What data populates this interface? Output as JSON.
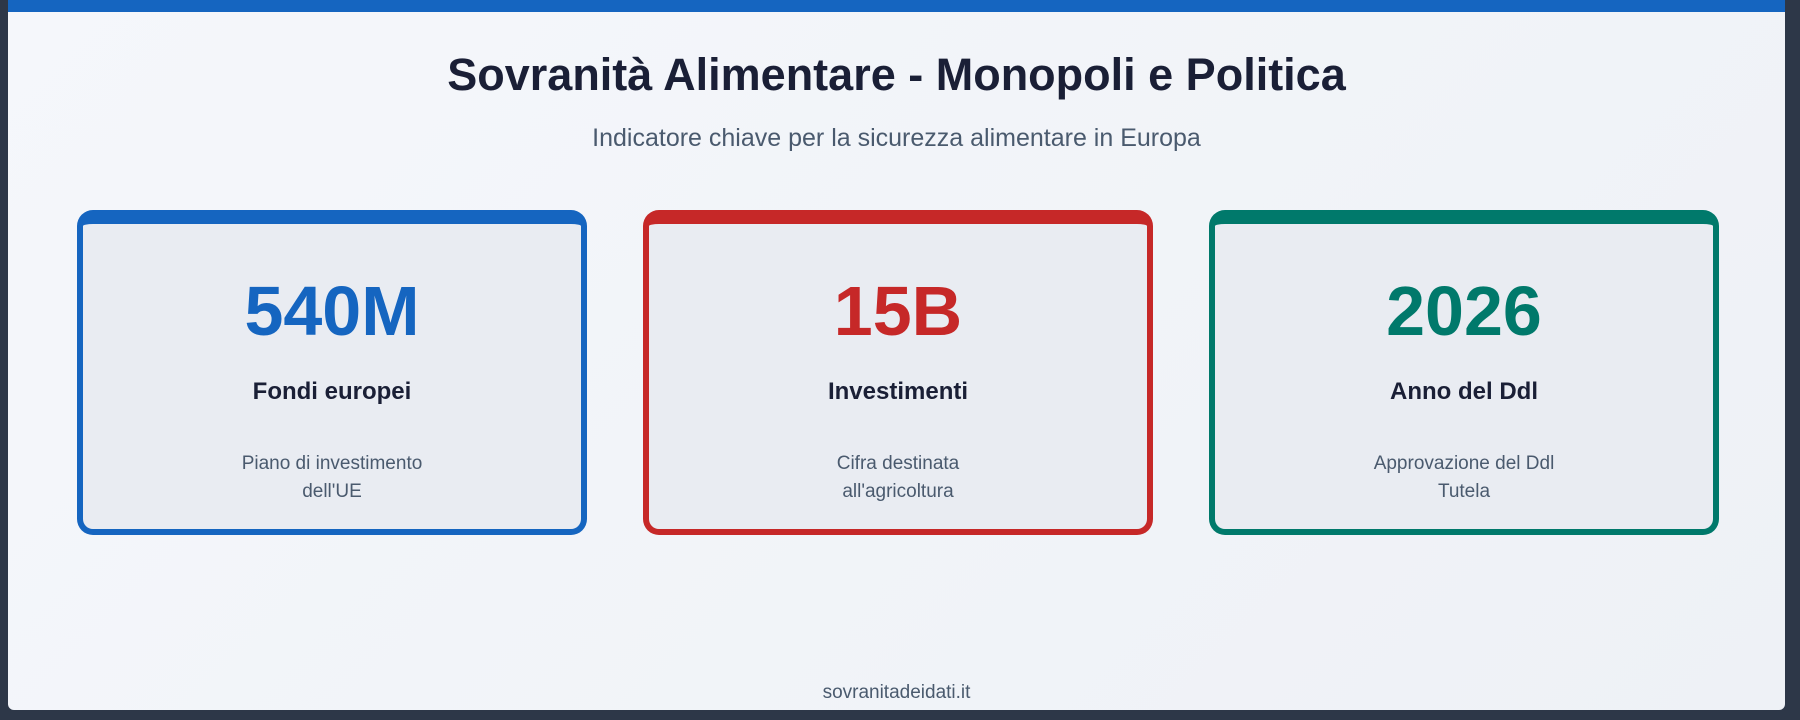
{
  "header": {
    "title": "Sovranità Alimentare - Monopoli e Politica",
    "subtitle": "Indicatore chiave per la sicurezza alimentare in Europa"
  },
  "colors": {
    "top_bar": "#1565c0",
    "card_blue": "#1565c0",
    "card_red": "#c62828",
    "card_green": "#00796b"
  },
  "cards": [
    {
      "value": "540M",
      "label": "Fondi europei",
      "description": "Piano di investimento dell'UE"
    },
    {
      "value": "15B",
      "label": "Investimenti",
      "description": "Cifra destinata all'agricoltura"
    },
    {
      "value": "2026",
      "label": "Anno del Ddl",
      "description": "Approvazione del Ddl Tutela"
    }
  ],
  "footer": {
    "text": "sovranitadeidati.it"
  }
}
